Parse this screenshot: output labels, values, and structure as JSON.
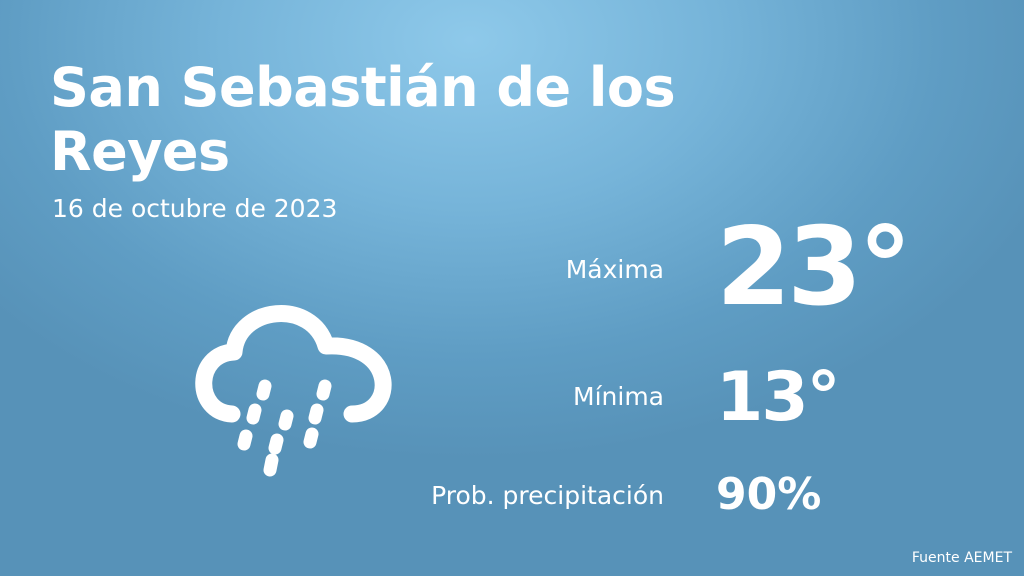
{
  "location": {
    "name": "San Sebastián de los Reyes"
  },
  "date": "16 de octubre de 2023",
  "forecast": {
    "icon": "rain-cloud-icon",
    "max": {
      "label": "Máxima",
      "value": "23°"
    },
    "min": {
      "label": "Mínima",
      "value": "13°"
    },
    "precipitation": {
      "label": "Prob. precipitación",
      "value": "90%"
    }
  },
  "source": "Fuente AEMET",
  "colors": {
    "background_light": "#8ec9ea",
    "background_dark": "#5792b8",
    "text": "#ffffff"
  }
}
